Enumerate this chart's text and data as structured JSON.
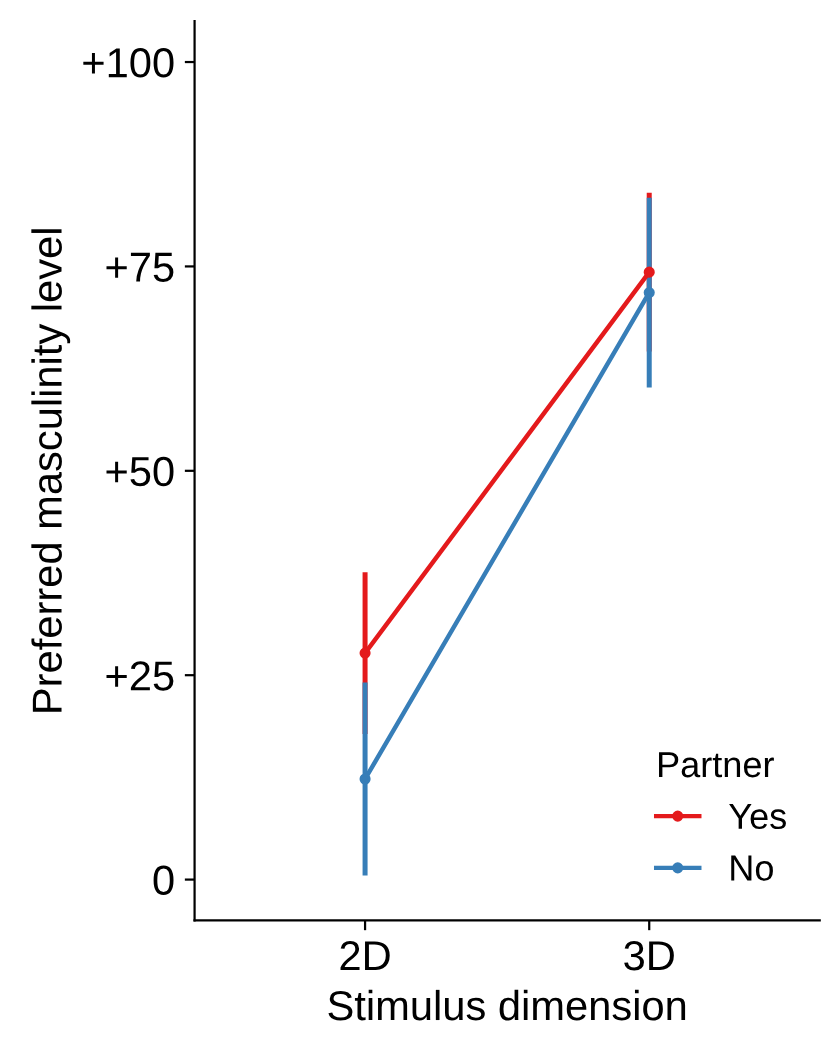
{
  "chart_data": {
    "type": "line",
    "xlabel": "Stimulus dimension",
    "ylabel": "Preferred masculinity level",
    "legend_title": "Partner",
    "categories": [
      "2D",
      "3D"
    ],
    "series": [
      {
        "name": "Yes",
        "color": "#e41a1c",
        "values": [
          27.7,
          74.3
        ],
        "errors": [
          9.6,
          9.4
        ]
      },
      {
        "name": "No",
        "color": "#377eb8",
        "values": [
          12.3,
          71.8
        ],
        "errors": [
          11.5,
          11.3
        ]
      }
    ],
    "ylim": [
      -5,
      105
    ],
    "yticks": [
      0,
      {
        "value": 25,
        "label": "+25"
      },
      {
        "value": 50,
        "label": "+50"
      },
      {
        "value": 75,
        "label": "+75"
      },
      {
        "value": 100,
        "label": "+100"
      }
    ],
    "grid": false,
    "legend": "bottom right",
    "marker": "circle",
    "line_style": "solid"
  }
}
